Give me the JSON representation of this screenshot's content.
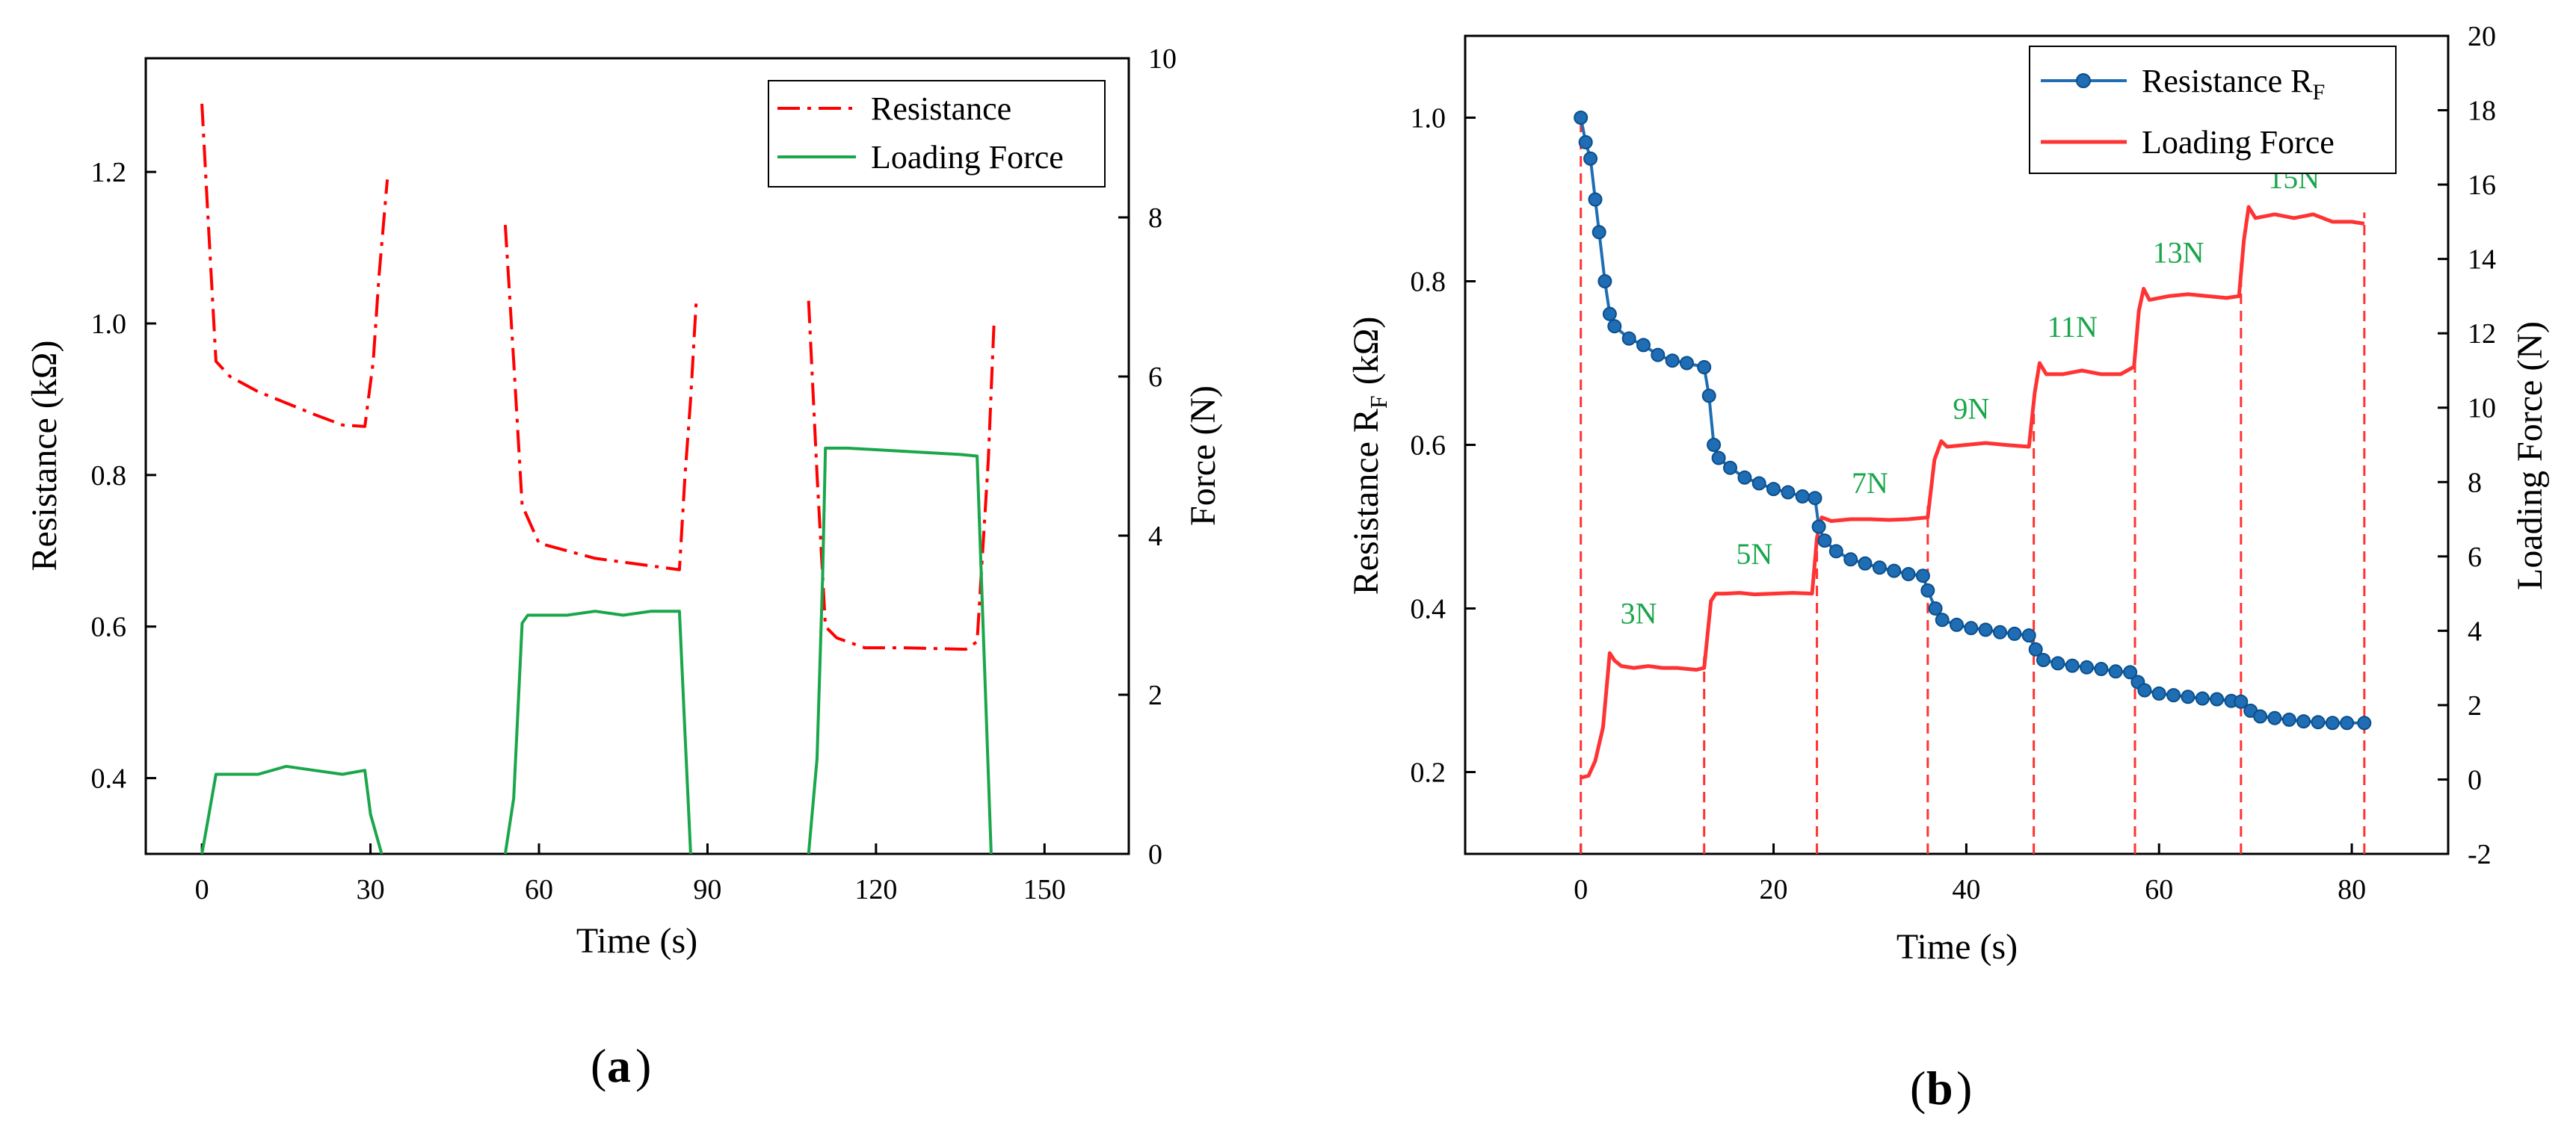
{
  "chart_data": [
    {
      "type": "line",
      "panel_label": "(a)",
      "panel_letter": "a",
      "xlabel": "Time (s)",
      "ylabel": "Resistance (kΩ)",
      "y2label": "Force (N)",
      "xlim": [
        -10,
        165
      ],
      "ylim": [
        0.3,
        1.35
      ],
      "y2lim": [
        0,
        10
      ],
      "xticks": [
        0,
        30,
        60,
        90,
        120,
        150
      ],
      "yticks": [
        0.4,
        0.6,
        0.8,
        1.0,
        1.2
      ],
      "yticklabels": [
        "0.4",
        "0.6",
        "0.8",
        "1.0",
        "1.2"
      ],
      "y2ticks": [
        0,
        2,
        4,
        6,
        8,
        10
      ],
      "legend_position": "top-right",
      "colors": {
        "resistance": "#ff0000",
        "force": "#1aa64b"
      },
      "series": [
        {
          "name": "Resistance",
          "axis": "left",
          "style": "dash-dot",
          "segments": [
            [
              [
                0,
                1.29
              ],
              [
                1,
                1.15
              ],
              [
                2.5,
                0.95
              ],
              [
                5,
                0.93
              ],
              [
                10,
                0.91
              ],
              [
                15,
                0.895
              ],
              [
                20,
                0.88
              ],
              [
                25,
                0.866
              ],
              [
                29,
                0.864
              ],
              [
                30.5,
                0.95
              ],
              [
                31.5,
                1.06
              ],
              [
                33,
                1.19
              ]
            ],
            [
              [
                54,
                1.13
              ],
              [
                55.5,
                0.95
              ],
              [
                57,
                0.76
              ],
              [
                60,
                0.71
              ],
              [
                65,
                0.7
              ],
              [
                70,
                0.69
              ],
              [
                75,
                0.685
              ],
              [
                80,
                0.68
              ],
              [
                85,
                0.675
              ],
              [
                86,
                0.8
              ],
              [
                87,
                0.9
              ],
              [
                88,
                1.03
              ]
            ],
            [
              [
                108,
                1.03
              ],
              [
                109.5,
                0.8
              ],
              [
                111,
                0.6
              ],
              [
                113,
                0.585
              ],
              [
                118,
                0.572
              ],
              [
                125,
                0.572
              ],
              [
                130,
                0.571
              ],
              [
                136,
                0.57
              ],
              [
                138,
                0.58
              ],
              [
                139,
                0.7
              ],
              [
                140,
                0.82
              ],
              [
                141,
                1.0
              ]
            ]
          ]
        },
        {
          "name": "Loading Force",
          "axis": "right",
          "style": "solid",
          "segments": [
            [
              [
                0,
                0
              ],
              [
                1,
                0.4
              ],
              [
                2.5,
                1.0
              ],
              [
                5,
                1.0
              ],
              [
                10,
                1.0
              ],
              [
                15,
                1.1
              ],
              [
                20,
                1.05
              ],
              [
                25,
                1.0
              ],
              [
                29,
                1.05
              ],
              [
                30,
                0.5
              ],
              [
                32,
                0
              ]
            ],
            [
              [
                54,
                0
              ],
              [
                55.5,
                0.7
              ],
              [
                57,
                2.9
              ],
              [
                58,
                3.0
              ],
              [
                65,
                3.0
              ],
              [
                70,
                3.05
              ],
              [
                75,
                3.0
              ],
              [
                80,
                3.05
              ],
              [
                85,
                3.05
              ],
              [
                86,
                1.5
              ],
              [
                87,
                0
              ]
            ],
            [
              [
                108,
                0
              ],
              [
                109.5,
                1.2
              ],
              [
                110.5,
                3.5
              ],
              [
                111,
                5.1
              ],
              [
                115,
                5.1
              ],
              [
                120,
                5.08
              ],
              [
                125,
                5.06
              ],
              [
                130,
                5.04
              ],
              [
                135,
                5.02
              ],
              [
                138,
                5.0
              ],
              [
                139,
                3
              ],
              [
                140.5,
                0
              ]
            ]
          ]
        }
      ]
    },
    {
      "type": "line",
      "panel_label": "(b)",
      "panel_letter": "b",
      "xlabel": "Time (s)",
      "ylabel": "Resistance  R",
      "ylabel_sub": "F",
      "ylabel_unit": "(kΩ)",
      "y2label": "Loading  Force (N)",
      "xlim": [
        -12,
        90
      ],
      "ylim": [
        0.1,
        1.1
      ],
      "y2lim": [
        -2,
        20
      ],
      "xticks": [
        0,
        20,
        40,
        60,
        80
      ],
      "yticks": [
        0.2,
        0.4,
        0.6,
        0.8,
        1.0
      ],
      "yticklabels": [
        "0.2",
        "0.4",
        "0.6",
        "0.8",
        "1.0"
      ],
      "y2ticks": [
        -2,
        0,
        2,
        4,
        6,
        8,
        10,
        12,
        14,
        16,
        18,
        20
      ],
      "legend_position": "top-right",
      "colors": {
        "resistance": "#1f6db4",
        "force": "#ff3333",
        "annotation": "#1aa64b"
      },
      "step_times": [
        0,
        12.8,
        24.5,
        36,
        47,
        57.5,
        68.5,
        81.3
      ],
      "series": [
        {
          "name": "Resistance R",
          "name_sub": "F",
          "axis": "left",
          "style": "line-markers",
          "points": [
            [
              0,
              1.0
            ],
            [
              0.5,
              0.97
            ],
            [
              1,
              0.95
            ],
            [
              1.5,
              0.9
            ],
            [
              1.9,
              0.86
            ],
            [
              2.5,
              0.8
            ],
            [
              3,
              0.76
            ],
            [
              3.5,
              0.745
            ],
            [
              5,
              0.73
            ],
            [
              6.5,
              0.722
            ],
            [
              8,
              0.71
            ],
            [
              9.5,
              0.703
            ],
            [
              11,
              0.7
            ],
            [
              12.8,
              0.695
            ],
            [
              13.3,
              0.66
            ],
            [
              13.8,
              0.6
            ],
            [
              14.3,
              0.584
            ],
            [
              15.5,
              0.572
            ],
            [
              17,
              0.56
            ],
            [
              18.5,
              0.553
            ],
            [
              20,
              0.546
            ],
            [
              21.5,
              0.542
            ],
            [
              23,
              0.537
            ],
            [
              24.3,
              0.535
            ],
            [
              24.7,
              0.5
            ],
            [
              25.3,
              0.483
            ],
            [
              26.5,
              0.47
            ],
            [
              28,
              0.46
            ],
            [
              29.5,
              0.455
            ],
            [
              31,
              0.45
            ],
            [
              32.5,
              0.446
            ],
            [
              34,
              0.442
            ],
            [
              35.5,
              0.44
            ],
            [
              36,
              0.422
            ],
            [
              36.8,
              0.4
            ],
            [
              37.5,
              0.386
            ],
            [
              39,
              0.38
            ],
            [
              40.5,
              0.376
            ],
            [
              42,
              0.374
            ],
            [
              43.5,
              0.371
            ],
            [
              45,
              0.369
            ],
            [
              46.5,
              0.367
            ],
            [
              47.2,
              0.35
            ],
            [
              48,
              0.337
            ],
            [
              49.5,
              0.333
            ],
            [
              51,
              0.33
            ],
            [
              52.5,
              0.328
            ],
            [
              54,
              0.326
            ],
            [
              55.5,
              0.323
            ],
            [
              57,
              0.322
            ],
            [
              57.8,
              0.31
            ],
            [
              58.5,
              0.3
            ],
            [
              60,
              0.296
            ],
            [
              61.5,
              0.294
            ],
            [
              63,
              0.292
            ],
            [
              64.5,
              0.29
            ],
            [
              66,
              0.289
            ],
            [
              67.5,
              0.287
            ],
            [
              68.5,
              0.286
            ],
            [
              69.5,
              0.275
            ],
            [
              70.5,
              0.268
            ],
            [
              72,
              0.266
            ],
            [
              73.5,
              0.264
            ],
            [
              75,
              0.262
            ],
            [
              76.5,
              0.261
            ],
            [
              78,
              0.26
            ],
            [
              79.5,
              0.26
            ],
            [
              81.3,
              0.26
            ]
          ]
        },
        {
          "name": "Loading Force",
          "axis": "right",
          "style": "solid",
          "points": [
            [
              0,
              0.05
            ],
            [
              0.8,
              0.1
            ],
            [
              1.5,
              0.5
            ],
            [
              2.3,
              1.4
            ],
            [
              3,
              3.4
            ],
            [
              3.5,
              3.2
            ],
            [
              4.2,
              3.05
            ],
            [
              5.5,
              3.0
            ],
            [
              7,
              3.05
            ],
            [
              8.5,
              3.0
            ],
            [
              10,
              3.0
            ],
            [
              12,
              2.95
            ],
            [
              12.8,
              3.0
            ],
            [
              13.5,
              4.8
            ],
            [
              14,
              5.0
            ],
            [
              15,
              5.0
            ],
            [
              16.5,
              5.02
            ],
            [
              18,
              4.98
            ],
            [
              20,
              5.0
            ],
            [
              22,
              5.02
            ],
            [
              24,
              5.0
            ],
            [
              24.5,
              6.5
            ],
            [
              25,
              7.05
            ],
            [
              26,
              6.95
            ],
            [
              28,
              7.0
            ],
            [
              30,
              7.0
            ],
            [
              32,
              6.98
            ],
            [
              34,
              7.0
            ],
            [
              36,
              7.05
            ],
            [
              36.7,
              8.6
            ],
            [
              37.4,
              9.1
            ],
            [
              38,
              8.95
            ],
            [
              40,
              9.0
            ],
            [
              42,
              9.05
            ],
            [
              44,
              9.0
            ],
            [
              46.5,
              8.95
            ],
            [
              47.1,
              10.4
            ],
            [
              47.6,
              11.2
            ],
            [
              48.3,
              10.9
            ],
            [
              50,
              10.9
            ],
            [
              52,
              11.0
            ],
            [
              54,
              10.9
            ],
            [
              56,
              10.9
            ],
            [
              57.4,
              11.1
            ],
            [
              57.9,
              12.6
            ],
            [
              58.4,
              13.2
            ],
            [
              59,
              12.9
            ],
            [
              61,
              13.0
            ],
            [
              63,
              13.05
            ],
            [
              65,
              13.0
            ],
            [
              67,
              12.95
            ],
            [
              68.3,
              13.0
            ],
            [
              68.8,
              14.5
            ],
            [
              69.3,
              15.4
            ],
            [
              70,
              15.1
            ],
            [
              72,
              15.2
            ],
            [
              74,
              15.1
            ],
            [
              76,
              15.2
            ],
            [
              78,
              15.0
            ],
            [
              80,
              15.0
            ],
            [
              81.3,
              14.95
            ]
          ]
        }
      ],
      "annotations": [
        {
          "text": "3N",
          "x": 6,
          "y": 4.2
        },
        {
          "text": "5N",
          "x": 18,
          "y": 5.8
        },
        {
          "text": "7N",
          "x": 30,
          "y": 7.7
        },
        {
          "text": "9N",
          "x": 40.5,
          "y": 9.7
        },
        {
          "text": "11N",
          "x": 51,
          "y": 11.9
        },
        {
          "text": "13N",
          "x": 62,
          "y": 13.9
        },
        {
          "text": "15N",
          "x": 74,
          "y": 15.9
        }
      ]
    }
  ]
}
